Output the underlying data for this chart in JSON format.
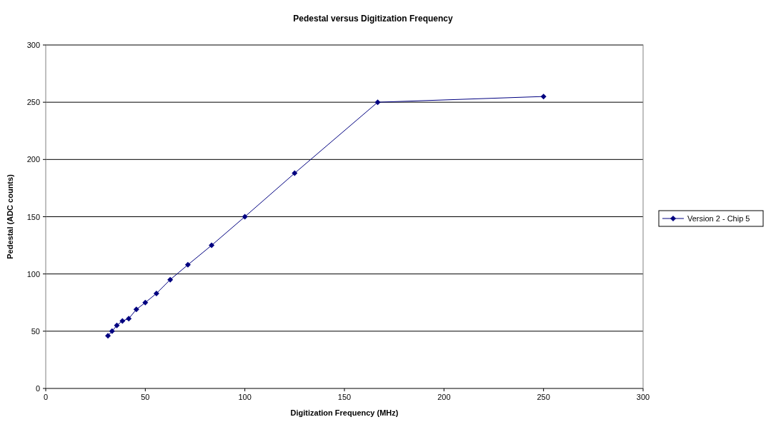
{
  "chart_data": {
    "type": "line",
    "title": "Pedestal versus Digitization Frequency",
    "xlabel": "Digitization Frequency (MHz)",
    "ylabel": "Pedestal (ADC counts)",
    "xlim": [
      0,
      300
    ],
    "xticks": [
      0,
      50,
      100,
      150,
      200,
      250,
      300
    ],
    "ylim": [
      0,
      300
    ],
    "yticks": [
      0,
      50,
      100,
      150,
      200,
      250,
      300
    ],
    "grid": "y",
    "legend": "right",
    "marker": "diamond",
    "line_style": "solid",
    "series": [
      {
        "name": "Version 2 - Chip 5",
        "color": "#000080",
        "x": [
          31.25,
          33.3,
          35.7,
          38.5,
          41.7,
          45.5,
          50,
          55.6,
          62.5,
          71.4,
          83.3,
          100,
          125,
          166.7,
          250
        ],
        "values": [
          46,
          50,
          55,
          59,
          61,
          69,
          75,
          83,
          95,
          108,
          125,
          150,
          188,
          250,
          255
        ]
      }
    ]
  }
}
